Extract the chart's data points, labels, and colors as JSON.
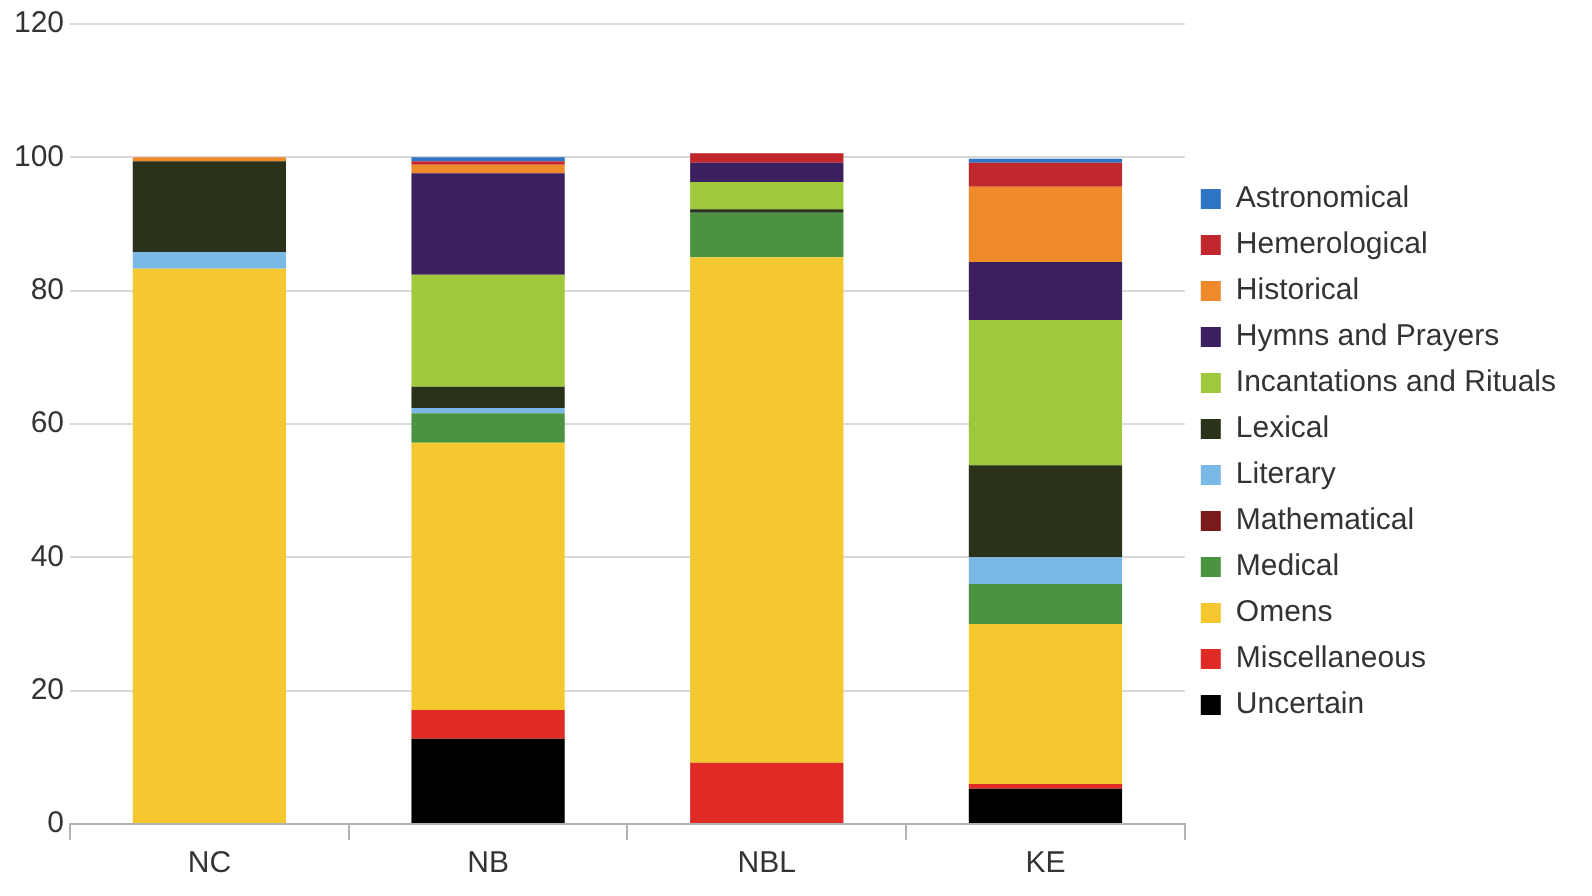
{
  "chart_data": {
    "type": "bar",
    "stacked": true,
    "categories": [
      "NC",
      "NB",
      "NBL",
      "KE"
    ],
    "ylim": [
      0,
      120
    ],
    "yticks": [
      0,
      20,
      40,
      60,
      80,
      100,
      120
    ],
    "grid": "y",
    "legend": "right",
    "series": [
      {
        "name": "Uncertain",
        "color": "#000000",
        "values": [
          0,
          12.8,
          0,
          5.3
        ]
      },
      {
        "name": "Miscellaneous",
        "color": "#e02a25",
        "values": [
          0,
          4.3,
          9.2,
          0.7
        ]
      },
      {
        "name": "Omens",
        "color": "#f5c830",
        "values": [
          83.3,
          40.1,
          75.8,
          24
        ]
      },
      {
        "name": "Medical",
        "color": "#4a9340",
        "values": [
          0,
          4.4,
          6.7,
          6
        ]
      },
      {
        "name": "Mathematical",
        "color": "#7a1a1a",
        "values": [
          0,
          0,
          0,
          0
        ]
      },
      {
        "name": "Literary",
        "color": "#7ab8e6",
        "values": [
          2.5,
          0.8,
          0,
          4
        ]
      },
      {
        "name": "Lexical",
        "color": "#2a331a",
        "values": [
          13.6,
          3.2,
          0.5,
          13.8
        ]
      },
      {
        "name": "Incantations and Rituals",
        "color": "#a0c83c",
        "values": [
          0,
          16.8,
          4.1,
          21.8
        ]
      },
      {
        "name": "Hymns and Prayers",
        "color": "#3b1f5e",
        "values": [
          0,
          15.2,
          2.9,
          8.7
        ]
      },
      {
        "name": "Historical",
        "color": "#ee8a2a",
        "values": [
          0.6,
          1.3,
          0,
          11.3
        ]
      },
      {
        "name": "Hemerological",
        "color": "#c0272d",
        "values": [
          0,
          0.5,
          1.4,
          3.6
        ]
      },
      {
        "name": "Astronomical",
        "color": "#2e75c6",
        "values": [
          0,
          0.6,
          0,
          0.6
        ]
      }
    ]
  }
}
